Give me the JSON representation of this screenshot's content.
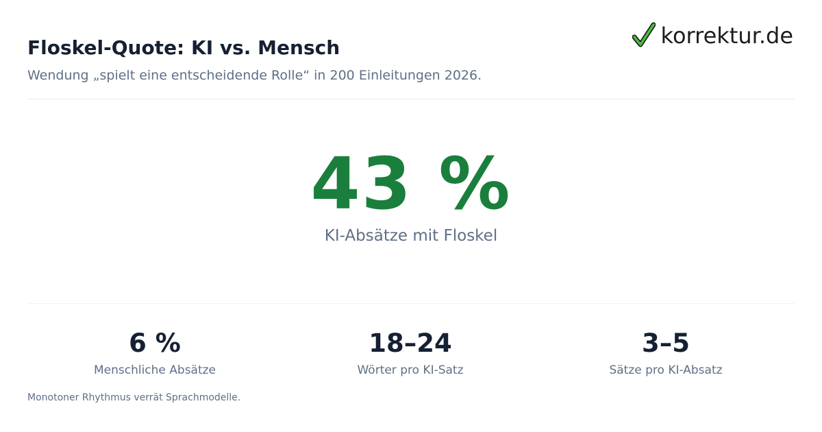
{
  "header": {
    "title": "Floskel-Quote: KI vs. Mensch",
    "subtitle": "Wendung „spielt eine entscheidende Rolle“ in 200 Einleitungen 2026."
  },
  "logo": {
    "text": "korrektur.de",
    "icon": "checkmark-icon",
    "accent_color": "#3fbf3f"
  },
  "hero": {
    "value": "43 %",
    "label": "KI-Absätze mit Floskel",
    "color": "#1a7f3c"
  },
  "stats": [
    {
      "value": "6 %",
      "label": "Menschliche Absätze"
    },
    {
      "value": "18–24",
      "label": "Wörter pro KI-Satz"
    },
    {
      "value": "3–5",
      "label": "Sätze pro KI-Absatz"
    }
  ],
  "footnote": "Monotoner Rhythmus verrät Sprachmodelle."
}
